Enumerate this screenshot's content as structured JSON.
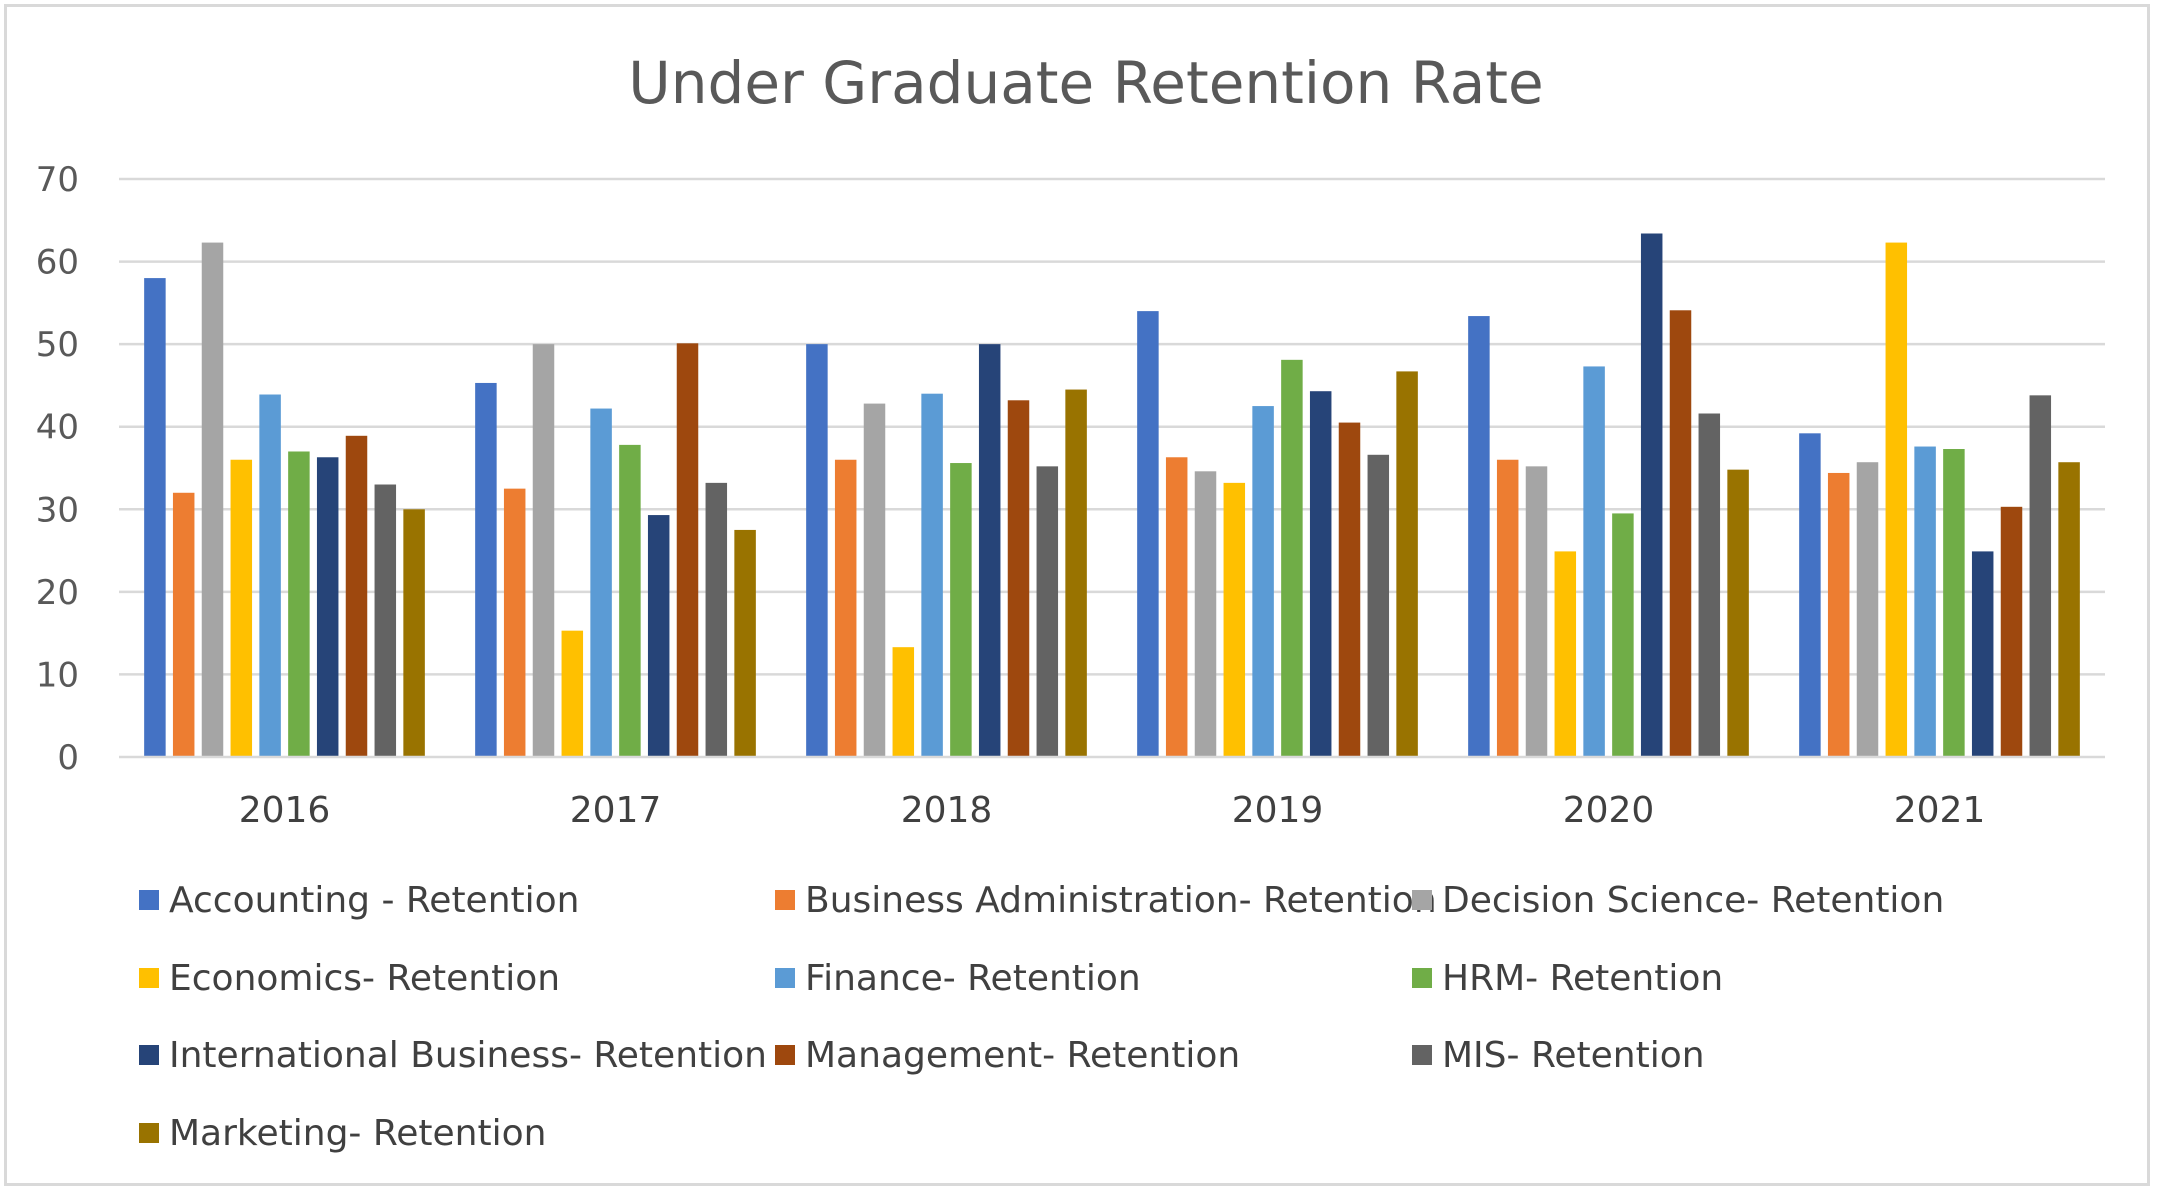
{
  "chart_data": {
    "type": "bar",
    "title": "Under Graduate Retention Rate",
    "xlabel": "",
    "ylabel": "",
    "ylim": [
      0,
      70
    ],
    "yticks": [
      0,
      10,
      20,
      30,
      40,
      50,
      60,
      70
    ],
    "grid": true,
    "legend_position": "bottom",
    "categories": [
      "2016",
      "2017",
      "2018",
      "2019",
      "2020",
      "2021"
    ],
    "series": [
      {
        "name": "Accounting - Retention",
        "color": "#4472c4",
        "values": [
          58.0,
          45.3,
          50.0,
          54.0,
          53.4,
          39.2
        ]
      },
      {
        "name": "Business Administration- Retention",
        "color": "#ed7d31",
        "values": [
          32.0,
          32.5,
          36.0,
          36.3,
          36.0,
          34.4
        ]
      },
      {
        "name": "Decision Science- Retention",
        "color": "#a5a5a5",
        "values": [
          62.3,
          50.0,
          42.8,
          34.6,
          35.2,
          35.7
        ]
      },
      {
        "name": "Economics- Retention",
        "color": "#ffc000",
        "values": [
          36.0,
          15.3,
          13.3,
          33.2,
          24.9,
          62.3
        ]
      },
      {
        "name": "Finance- Retention",
        "color": "#5b9bd5",
        "values": [
          43.9,
          42.2,
          44.0,
          42.5,
          47.3,
          37.6
        ]
      },
      {
        "name": "HRM- Retention",
        "color": "#70ad47",
        "values": [
          37.0,
          37.8,
          35.6,
          48.1,
          29.5,
          37.3
        ]
      },
      {
        "name": "International Business- Retention",
        "color": "#264478",
        "values": [
          36.3,
          29.3,
          50.0,
          44.3,
          63.4,
          24.9
        ]
      },
      {
        "name": "Management- Retention",
        "color": "#9e480e",
        "values": [
          38.9,
          50.1,
          43.2,
          40.5,
          54.1,
          30.3
        ]
      },
      {
        "name": "MIS- Retention",
        "color": "#636363",
        "values": [
          33.0,
          33.2,
          35.2,
          36.6,
          41.6,
          43.8
        ]
      },
      {
        "name": "Marketing- Retention",
        "color": "#997300",
        "values": [
          30.0,
          27.5,
          44.5,
          46.7,
          34.8,
          35.7
        ]
      }
    ]
  }
}
